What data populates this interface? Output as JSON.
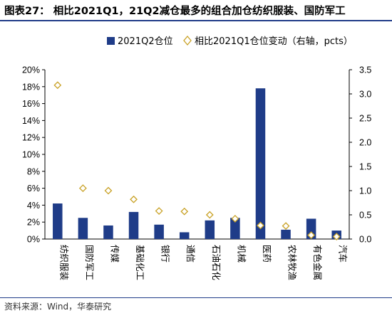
{
  "title": "图表27： 相比2021Q1，21Q2减仓最多的组合加仓纺织服装、国防军工",
  "source": "资料来源：Wind，华泰研究",
  "colors": {
    "bar": "#1f3c88",
    "marker": "#c9a227",
    "rule": "#1f3c88"
  },
  "chart_data": {
    "type": "bar",
    "categories": [
      "纺织服装",
      "国防军工",
      "传媒",
      "基础化工",
      "银行",
      "通信",
      "石油石化",
      "机械",
      "医药",
      "农林牧渔",
      "有色金属",
      "汽车"
    ],
    "series": [
      {
        "name": "2021Q2仓位",
        "type": "bar",
        "axis": "left",
        "values": [
          4.2,
          2.5,
          1.6,
          3.2,
          1.7,
          0.8,
          2.2,
          2.5,
          17.8,
          1.1,
          2.4,
          1.0
        ]
      },
      {
        "name": "相比2021Q1仓位变动（右轴，pcts）",
        "type": "scatter",
        "marker": "diamond",
        "axis": "right",
        "values": [
          3.18,
          1.05,
          1.0,
          0.82,
          0.58,
          0.57,
          0.5,
          0.42,
          0.28,
          0.27,
          0.08,
          0.05
        ]
      }
    ],
    "y_left": {
      "ylim": [
        0,
        20
      ],
      "ticks": [
        "0%",
        "2%",
        "4%",
        "6%",
        "8%",
        "10%",
        "12%",
        "14%",
        "16%",
        "18%",
        "20%"
      ]
    },
    "y_right": {
      "ylim": [
        0,
        3.5
      ],
      "ticks": [
        "0.0",
        "0.5",
        "1.0",
        "1.5",
        "2.0",
        "2.5",
        "3.0",
        "3.5"
      ]
    },
    "legend_position": "top",
    "grid": false
  }
}
